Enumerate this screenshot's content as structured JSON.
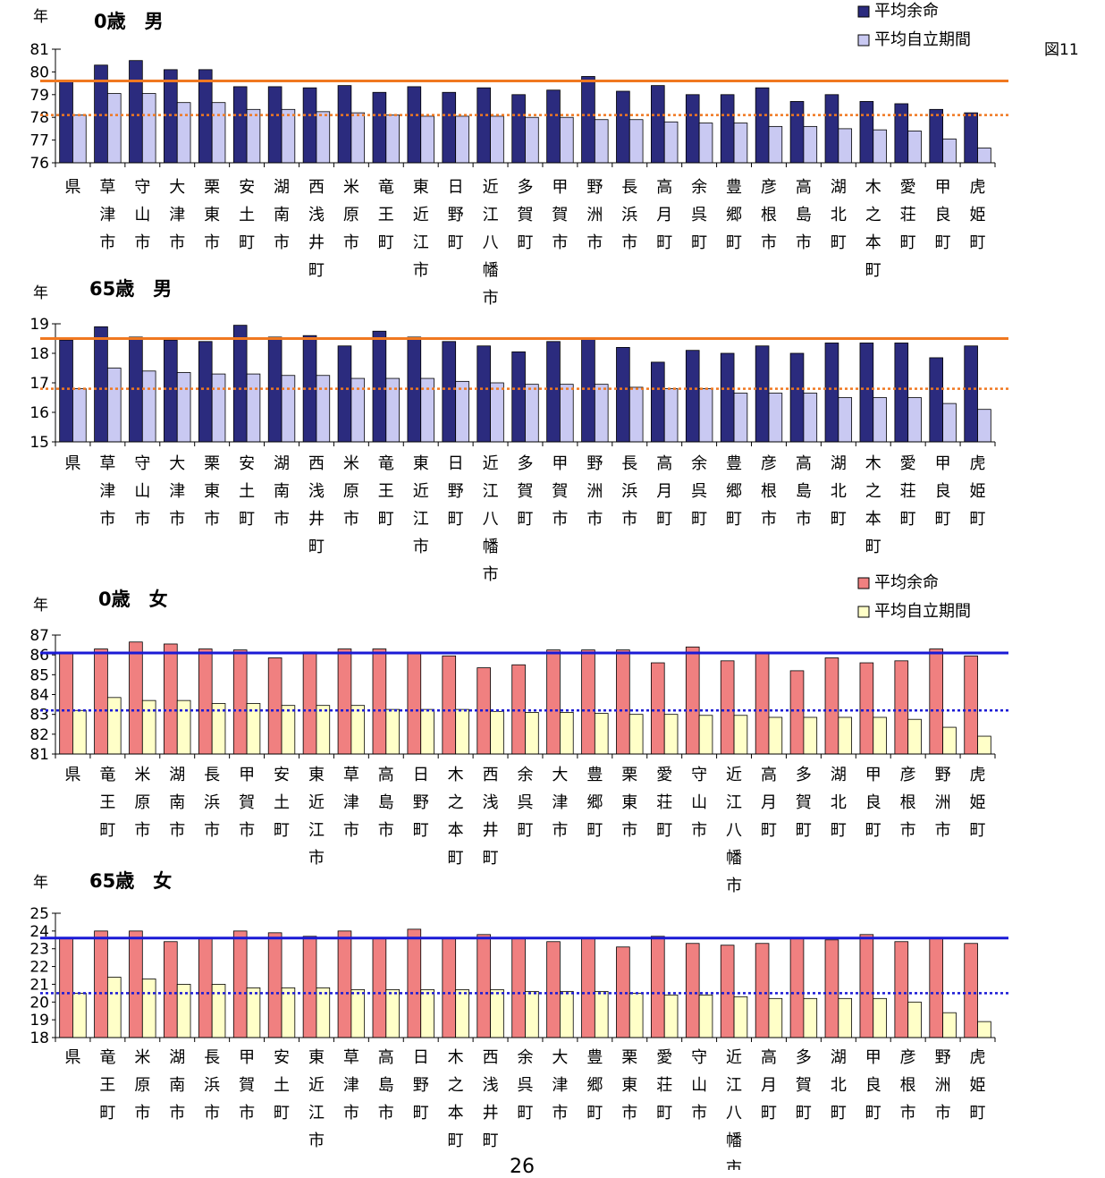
{
  "page": {
    "figure_label": "図11",
    "page_number": "26"
  },
  "colors": {
    "male_life": "#2b2b7e",
    "male_indep": "#c9c9f2",
    "female_life": "#f08080",
    "female_indep": "#ffffc8",
    "male_ref": "#f07820",
    "female_ref": "#1a1ad6",
    "axis": "#000000"
  },
  "chart_data": [
    {
      "type": "bar",
      "title": "0歳　男",
      "ylabel": "年",
      "ylim": [
        76,
        81
      ],
      "yticks": [
        76,
        77,
        78,
        79,
        80,
        81
      ],
      "legend": [
        "平均余命",
        "平均自立期間"
      ],
      "ref_lines": {
        "solid": 79.6,
        "dotted": 78.1
      },
      "categories": [
        "県",
        "草津市",
        "守山市",
        "大津市",
        "栗東市",
        "安土町",
        "湖南市",
        "西浅井町",
        "米原市",
        "竜王町",
        "東近江市",
        "日野町",
        "近江八幡市",
        "多賀町",
        "甲賀市",
        "野洲市",
        "長浜市",
        "高月町",
        "余呉町",
        "豊郷町",
        "彦根市",
        "高島市",
        "湖北町",
        "木之本町",
        "愛荘町",
        "甲良町",
        "虎姫町"
      ],
      "series": [
        {
          "name": "平均余命",
          "values": [
            79.6,
            80.3,
            80.5,
            80.1,
            80.1,
            79.35,
            79.35,
            79.3,
            79.4,
            79.1,
            79.35,
            79.1,
            79.3,
            79.0,
            79.2,
            79.8,
            79.15,
            79.4,
            79.0,
            79.0,
            79.3,
            78.7,
            79.0,
            78.7,
            78.6,
            78.35,
            78.2
          ]
        },
        {
          "name": "平均自立期間",
          "values": [
            78.1,
            79.05,
            79.05,
            78.65,
            78.65,
            78.35,
            78.35,
            78.25,
            78.2,
            78.1,
            78.05,
            78.05,
            78.05,
            78.0,
            78.0,
            77.9,
            77.9,
            77.8,
            77.75,
            77.75,
            77.6,
            77.6,
            77.5,
            77.45,
            77.4,
            77.05,
            76.65
          ]
        }
      ]
    },
    {
      "type": "bar",
      "title": "65歳　男",
      "ylabel": "年",
      "ylim": [
        15,
        19
      ],
      "yticks": [
        15,
        16,
        17,
        18,
        19
      ],
      "ref_lines": {
        "solid": 18.5,
        "dotted": 16.8
      },
      "categories": [
        "県",
        "草津市",
        "守山市",
        "大津市",
        "栗東市",
        "安土町",
        "湖南市",
        "西浅井町",
        "米原市",
        "竜王町",
        "東近江市",
        "日野町",
        "近江八幡市",
        "多賀町",
        "甲賀市",
        "野洲市",
        "長浜市",
        "高月町",
        "余呉町",
        "豊郷町",
        "彦根市",
        "高島市",
        "湖北町",
        "木之本町",
        "愛荘町",
        "甲良町",
        "虎姫町"
      ],
      "series": [
        {
          "name": "平均余命",
          "values": [
            18.45,
            18.9,
            18.55,
            18.45,
            18.4,
            18.95,
            18.55,
            18.6,
            18.25,
            18.75,
            18.55,
            18.4,
            18.25,
            18.05,
            18.4,
            18.5,
            18.2,
            17.7,
            18.1,
            18.0,
            18.25,
            18.0,
            18.35,
            18.35,
            18.35,
            17.85,
            18.25
          ]
        },
        {
          "name": "平均自立期間",
          "values": [
            16.8,
            17.5,
            17.4,
            17.35,
            17.3,
            17.3,
            17.25,
            17.25,
            17.15,
            17.15,
            17.15,
            17.05,
            17.0,
            16.95,
            16.95,
            16.95,
            16.85,
            16.8,
            16.8,
            16.65,
            16.65,
            16.65,
            16.5,
            16.5,
            16.5,
            16.3,
            16.1
          ]
        }
      ]
    },
    {
      "type": "bar",
      "title": "0歳　女",
      "ylabel": "年",
      "ylim": [
        81,
        87
      ],
      "yticks": [
        81,
        82,
        83,
        84,
        85,
        86,
        87
      ],
      "legend": [
        "平均余命",
        "平均自立期間"
      ],
      "ref_lines": {
        "solid": 86.1,
        "dotted": 83.2
      },
      "categories": [
        "県",
        "竜王町",
        "米原市",
        "湖南市",
        "長浜市",
        "甲賀市",
        "安土町",
        "東近江市",
        "草津市",
        "高島市",
        "日野町",
        "木之本町",
        "西浅井町",
        "余呉町",
        "大津市",
        "豊郷町",
        "栗東市",
        "愛荘町",
        "守山市",
        "近江八幡市",
        "高月町",
        "多賀町",
        "湖北町",
        "甲良町",
        "彦根市",
        "野洲市",
        "虎姫町"
      ],
      "series": [
        {
          "name": "平均余命",
          "values": [
            86.1,
            86.3,
            86.65,
            86.55,
            86.3,
            86.25,
            85.85,
            86.15,
            86.3,
            86.3,
            86.1,
            85.95,
            85.35,
            85.5,
            86.25,
            86.25,
            86.25,
            85.6,
            86.4,
            85.7,
            86.1,
            85.2,
            85.85,
            85.6,
            85.7,
            86.3,
            85.95
          ]
        },
        {
          "name": "平均自立期間",
          "values": [
            83.2,
            83.85,
            83.7,
            83.7,
            83.55,
            83.55,
            83.45,
            83.45,
            83.45,
            83.25,
            83.25,
            83.25,
            83.15,
            83.1,
            83.1,
            83.05,
            83.0,
            83.0,
            82.95,
            82.95,
            82.85,
            82.85,
            82.85,
            82.85,
            82.75,
            82.35,
            81.9
          ]
        }
      ]
    },
    {
      "type": "bar",
      "title": "65歳　女",
      "ylabel": "年",
      "ylim": [
        18,
        25
      ],
      "yticks": [
        18,
        19,
        20,
        21,
        22,
        23,
        24,
        25
      ],
      "ref_lines": {
        "solid": 23.6,
        "dotted": 20.5
      },
      "categories": [
        "県",
        "竜王町",
        "米原市",
        "湖南市",
        "長浜市",
        "甲賀市",
        "安土町",
        "東近江市",
        "草津市",
        "高島市",
        "日野町",
        "木之本町",
        "西浅井町",
        "余呉町",
        "大津市",
        "豊郷町",
        "栗東市",
        "愛荘町",
        "守山市",
        "近江八幡市",
        "高月町",
        "多賀町",
        "湖北町",
        "甲良町",
        "彦根市",
        "野洲市",
        "虎姫町"
      ],
      "series": [
        {
          "name": "平均余命",
          "values": [
            23.6,
            24.0,
            24.0,
            23.4,
            23.6,
            24.0,
            23.9,
            23.7,
            24.0,
            23.6,
            24.1,
            23.6,
            23.8,
            23.6,
            23.4,
            23.6,
            23.1,
            23.7,
            23.3,
            23.2,
            23.3,
            23.6,
            23.5,
            23.8,
            23.4,
            23.6,
            23.3
          ]
        },
        {
          "name": "平均自立期間",
          "values": [
            20.5,
            21.4,
            21.3,
            21.0,
            21.0,
            20.8,
            20.8,
            20.8,
            20.7,
            20.7,
            20.7,
            20.7,
            20.7,
            20.6,
            20.6,
            20.6,
            20.5,
            20.4,
            20.4,
            20.3,
            20.2,
            20.2,
            20.2,
            20.2,
            20.0,
            19.4,
            18.9
          ]
        }
      ]
    }
  ]
}
